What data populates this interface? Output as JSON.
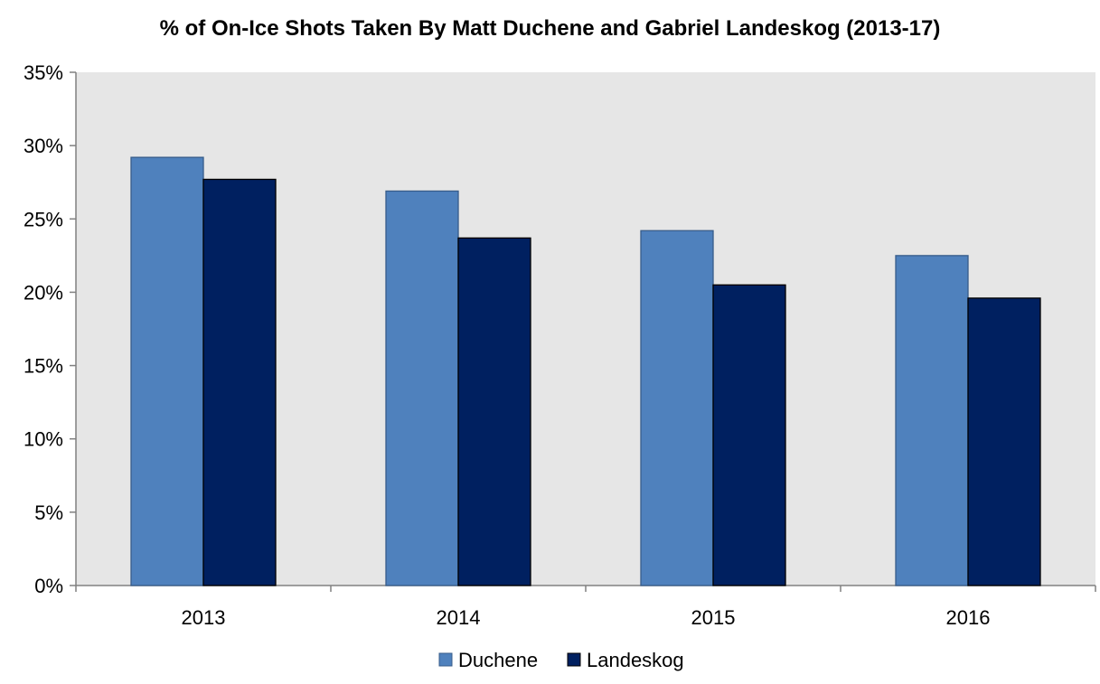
{
  "chart_data": {
    "type": "bar",
    "title": "% of On-Ice Shots Taken By Matt Duchene and Gabriel Landeskog (2013-17)",
    "xlabel": "",
    "ylabel": "",
    "categories": [
      "2013",
      "2014",
      "2015",
      "2016"
    ],
    "series": [
      {
        "name": "Duchene",
        "color": "#4F81BD",
        "values": [
          0.292,
          0.269,
          0.242,
          0.225
        ]
      },
      {
        "name": "Landeskog",
        "color": "#002060",
        "values": [
          0.277,
          0.237,
          0.205,
          0.196
        ]
      }
    ],
    "ylim": [
      0,
      0.35
    ],
    "yticks": [
      {
        "value": 0.0,
        "label": "0%"
      },
      {
        "value": 0.05,
        "label": "5%"
      },
      {
        "value": 0.1,
        "label": "10%"
      },
      {
        "value": 0.15,
        "label": "15%"
      },
      {
        "value": 0.2,
        "label": "20%"
      },
      {
        "value": 0.25,
        "label": "25%"
      },
      {
        "value": 0.3,
        "label": "30%"
      },
      {
        "value": 0.35,
        "label": "35%"
      }
    ],
    "grid": false,
    "plot_background": "#E6E6E6",
    "legend_position": "bottom"
  }
}
